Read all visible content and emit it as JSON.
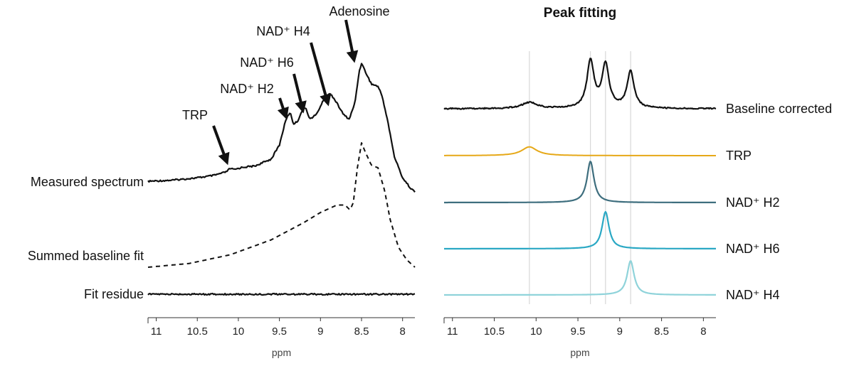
{
  "chart_data": [
    {
      "type": "line",
      "title": "",
      "xlabel": "ppm",
      "ylabel": "",
      "xlim": [
        11.1,
        7.85
      ],
      "x_reversed": true,
      "xticks": [
        11,
        10.5,
        10,
        9.5,
        9,
        8.5,
        8
      ],
      "xtick_labels": [
        "11",
        "10.5",
        "10",
        "9.5",
        "9",
        "8.5",
        "8"
      ],
      "series": [
        {
          "name": "Measured spectrum",
          "style": "solid",
          "color": "#111111",
          "x": [
            11.1,
            10.8,
            10.5,
            10.3,
            10.15,
            10.1,
            10.05,
            9.95,
            9.8,
            9.6,
            9.5,
            9.42,
            9.37,
            9.33,
            9.28,
            9.22,
            9.18,
            9.13,
            9.05,
            8.95,
            8.88,
            8.82,
            8.72,
            8.65,
            8.58,
            8.53,
            8.5,
            8.45,
            8.38,
            8.3,
            8.25,
            8.18,
            8.1,
            8.0,
            7.9,
            7.85
          ],
          "y": [
            0.09,
            0.1,
            0.12,
            0.14,
            0.17,
            0.2,
            0.19,
            0.21,
            0.22,
            0.28,
            0.4,
            0.62,
            0.68,
            0.58,
            0.6,
            0.7,
            0.72,
            0.62,
            0.66,
            0.8,
            0.84,
            0.78,
            0.66,
            0.62,
            0.76,
            1.02,
            1.1,
            1.02,
            0.92,
            0.9,
            0.82,
            0.6,
            0.3,
            0.12,
            0.03,
            0.0
          ]
        },
        {
          "name": "Summed baseline fit",
          "style": "dashed",
          "color": "#111111",
          "x": [
            11.1,
            10.6,
            10.1,
            9.6,
            9.2,
            9.0,
            8.8,
            8.7,
            8.64,
            8.6,
            8.55,
            8.5,
            8.45,
            8.38,
            8.3,
            8.22,
            8.15,
            8.05,
            7.95,
            7.85
          ],
          "y": [
            0.0,
            0.03,
            0.1,
            0.22,
            0.36,
            0.44,
            0.5,
            0.5,
            0.46,
            0.52,
            0.8,
            1.0,
            0.92,
            0.82,
            0.8,
            0.62,
            0.38,
            0.16,
            0.06,
            0.0
          ]
        },
        {
          "name": "Fit residue",
          "style": "solid",
          "color": "#111111",
          "x": [
            11.1,
            7.85
          ],
          "y": [
            0.0,
            0.0
          ]
        }
      ],
      "annotations": [
        {
          "text": "Adenosine",
          "x": 8.5
        },
        {
          "text": "NAD⁺ H4",
          "x": 8.88
        },
        {
          "text": "NAD⁺ H6",
          "x": 9.18
        },
        {
          "text": "NAD⁺ H2",
          "x": 9.37
        },
        {
          "text": "TRP",
          "x": 10.1
        }
      ]
    },
    {
      "type": "line",
      "title": "Peak fitting",
      "xlabel": "ppm",
      "ylabel": "",
      "xlim": [
        11.1,
        7.85
      ],
      "x_reversed": true,
      "xticks": [
        11,
        10.5,
        10,
        9.5,
        9,
        8.5,
        8
      ],
      "xtick_labels": [
        "11",
        "10.5",
        "10",
        "9.5",
        "9",
        "8.5",
        "8"
      ],
      "reference_lines_ppm": [
        10.08,
        9.35,
        9.17,
        8.87
      ],
      "series": [
        {
          "name": "Baseline corrected",
          "color": "#111111",
          "peaks": [
            {
              "center": 10.08,
              "height": 0.13,
              "width": 0.11
            },
            {
              "center": 9.35,
              "height": 1.0,
              "width": 0.05
            },
            {
              "center": 9.17,
              "height": 0.93,
              "width": 0.05
            },
            {
              "center": 8.87,
              "height": 0.78,
              "width": 0.05
            }
          ]
        },
        {
          "name": "TRP",
          "color": "#E6A817",
          "peaks": [
            {
              "center": 10.08,
              "height": 0.13,
              "width": 0.11
            }
          ]
        },
        {
          "name": "NAD⁺ H2",
          "color": "#3E6E7E",
          "peaks": [
            {
              "center": 9.35,
              "height": 1.0,
              "width": 0.05
            }
          ]
        },
        {
          "name": "NAD⁺ H6",
          "color": "#2AA8C4",
          "peaks": [
            {
              "center": 9.17,
              "height": 1.0,
              "width": 0.05
            }
          ]
        },
        {
          "name": "NAD⁺ H4",
          "color": "#8FD3DA",
          "peaks": [
            {
              "center": 8.87,
              "height": 1.0,
              "width": 0.05
            }
          ]
        }
      ]
    }
  ]
}
